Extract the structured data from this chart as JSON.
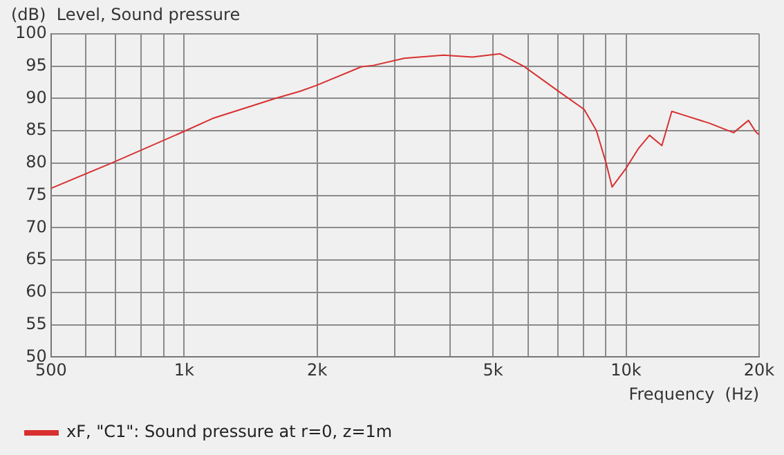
{
  "chart_data": {
    "type": "line",
    "title": "(dB)  Level, Sound pressure",
    "xlabel": "Frequency  (Hz)",
    "log": "x",
    "xlim": [
      500,
      20000
    ],
    "ylim": [
      50,
      100
    ],
    "xticks": [
      500,
      {
        "value": 600,
        "label": null
      },
      {
        "value": 700,
        "label": null
      },
      {
        "value": 800,
        "label": null
      },
      {
        "value": 900,
        "label": null
      },
      {
        "value": 1000,
        "label": "1k"
      },
      {
        "value": 2000,
        "label": "2k"
      },
      {
        "value": 3000,
        "label": null
      },
      {
        "value": 4000,
        "label": null
      },
      {
        "value": 5000,
        "label": "5k"
      },
      {
        "value": 6000,
        "label": null
      },
      {
        "value": 7000,
        "label": null
      },
      {
        "value": 8000,
        "label": null
      },
      {
        "value": 9000,
        "label": null
      },
      {
        "value": 10000,
        "label": "10k"
      },
      {
        "value": 20000,
        "label": "20k"
      }
    ],
    "yticks": [
      50,
      55,
      60,
      65,
      70,
      75,
      80,
      85,
      90,
      95,
      100
    ],
    "grid": true,
    "legend": "bottom",
    "marker": "none",
    "line_style": "solid",
    "series": [
      {
        "name": "xF, \"C1\": Sound pressure at r=0, z=1m",
        "color": "#d83030",
        "x": [
          500,
          685,
          1000,
          1160,
          1610,
          1830,
          1990,
          2520,
          2680,
          3150,
          3860,
          4490,
          5190,
          5860,
          7100,
          8040,
          8570,
          9020,
          9300,
          10000,
          10680,
          11300,
          12050,
          12690,
          13530,
          15390,
          17510,
          18920,
          19670,
          20000
        ],
        "values": [
          76.1,
          80.0,
          84.9,
          86.9,
          90.0,
          91.1,
          92.0,
          94.9,
          95.1,
          96.2,
          96.7,
          96.4,
          96.9,
          95.0,
          90.9,
          88.3,
          85.0,
          79.9,
          76.3,
          79.2,
          82.3,
          84.3,
          82.7,
          88.0,
          87.4,
          86.2,
          84.7,
          86.6,
          84.8,
          84.4
        ]
      }
    ]
  }
}
